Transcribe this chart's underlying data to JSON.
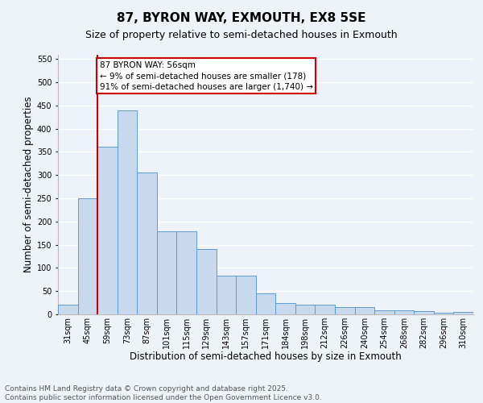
{
  "title": "87, BYRON WAY, EXMOUTH, EX8 5SE",
  "subtitle": "Size of property relative to semi-detached houses in Exmouth",
  "xlabel": "Distribution of semi-detached houses by size in Exmouth",
  "ylabel": "Number of semi-detached properties",
  "categories": [
    "31sqm",
    "45sqm",
    "59sqm",
    "73sqm",
    "87sqm",
    "101sqm",
    "115sqm",
    "129sqm",
    "143sqm",
    "157sqm",
    "171sqm",
    "184sqm",
    "198sqm",
    "212sqm",
    "226sqm",
    "240sqm",
    "254sqm",
    "268sqm",
    "282sqm",
    "296sqm",
    "310sqm"
  ],
  "values": [
    20,
    250,
    362,
    440,
    305,
    178,
    178,
    140,
    83,
    83,
    45,
    25,
    20,
    20,
    15,
    15,
    9,
    8,
    7,
    3,
    6
  ],
  "bar_color": "#c8d9ee",
  "bar_edge_color": "#5b9bd5",
  "reference_line_label": "87 BYRON WAY: 56sqm",
  "annotation_line1": "← 9% of semi-detached houses are smaller (178)",
  "annotation_line2": "91% of semi-detached houses are larger (1,740) →",
  "annotation_box_color": "#ffffff",
  "annotation_box_edge": "#cc0000",
  "ref_line_color": "#cc0000",
  "ref_line_x": 1.5,
  "ylim": [
    0,
    560
  ],
  "yticks": [
    0,
    50,
    100,
    150,
    200,
    250,
    300,
    350,
    400,
    450,
    500,
    550
  ],
  "footer_line1": "Contains HM Land Registry data © Crown copyright and database right 2025.",
  "footer_line2": "Contains public sector information licensed under the Open Government Licence v3.0.",
  "background_color": "#eef2f9",
  "grid_color": "#ffffff",
  "title_fontsize": 11,
  "subtitle_fontsize": 9,
  "axis_label_fontsize": 8.5,
  "tick_fontsize": 7,
  "footer_fontsize": 6.5,
  "annotation_fontsize": 7.5
}
